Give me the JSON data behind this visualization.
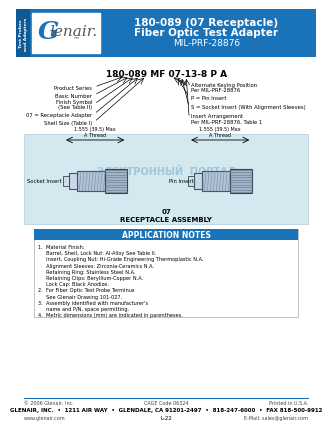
{
  "title_line1": "180-089 (07 Receptacle)",
  "title_line2": "Fiber Optic Test Adapter",
  "title_line3": "MIL-PRF-28876",
  "header_bg": "#1a72b8",
  "header_text_color": "#ffffff",
  "side_label": "Test Probes\nand Adapters",
  "logo_G": "G",
  "part_number_label": "180-089 MF 07-13-8 P A",
  "pn_labels_left": [
    "Product Series",
    "Basic Number",
    "Finish Symbol\n(See Table II)",
    "07 = Receptacle Adapter",
    "Shell Size (Table I)"
  ],
  "pn_labels_right": [
    "Alternate Keying Position\nPer MIL-PRF-28876",
    "P = Pin Insert",
    "S = Socket Insert (With Alignment Sleeves)",
    "Insert Arrangement\nPer MIL-PRF-28876, Table 1"
  ],
  "dim_left": "1.555 (39.5) Max\nA Thread",
  "dim_right": "1.555 (39.5) Max\nA Thread",
  "socket_label": "Socket Insert",
  "pin_label": "Pin Insert",
  "assembly_label": "07\nRECEPTACLE ASSEMBLY",
  "app_notes_title": "APPLICATION NOTES",
  "app_notes_bg": "#1a72b8",
  "app_notes_text": [
    "1.  Material Finish:",
    "     Barrel, Shell, Lock Nut: Al-Alloy See Table II.",
    "     Insert, Coupling Nut: Hi-Grade Engineering Thermoplastic N.A.",
    "     Alignment Sleeves: Zirconia-Ceramics N.A.",
    "     Retaining Ring: Stainless Steel N.A.",
    "     Retaining Clips: Beryllium-Copper N.A.",
    "     Lock Cap: Black Anodize.",
    "2.  For Fiber Optic Test Probe Terminus",
    "     See Glenair Drawing 101-027.",
    "3.  Assembly identified with manufacturer's",
    "     name and P/N, space permitting.",
    "4.  Metric dimensions (mm) are indicated in parentheses."
  ],
  "footer_copy": "© 2006 Glenair, Inc.",
  "footer_cage": "CAGE Code 06324",
  "footer_printed": "Printed in U.S.A.",
  "footer_address": "GLENAIR, INC.  •  1211 AIR WAY  •  GLENDALE, CA 91201-2497  •  818-247-6000  •  FAX 818-500-9912",
  "footer_web": "www.glenair.com",
  "footer_pn": "L-22",
  "footer_email": "E-Mail: sales@glenair.com",
  "diagram_bg": "#d4e8f0",
  "watermark": "ЭЛЕКТРОННЫЙ  ПОРТАЛ"
}
